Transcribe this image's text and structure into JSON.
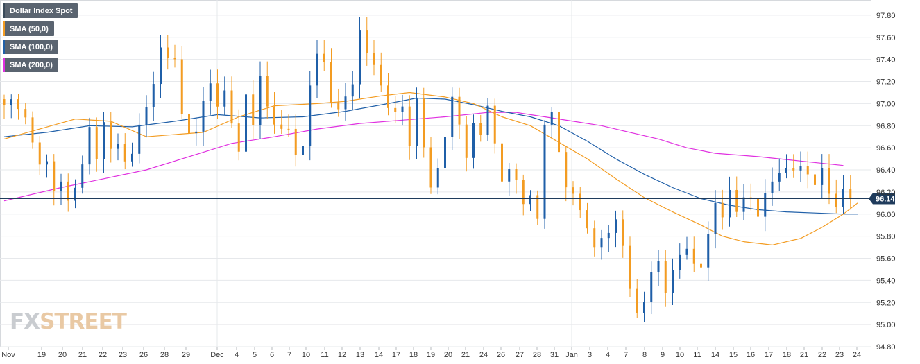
{
  "legend": [
    {
      "label": "Dollar Index Spot",
      "color": "#3a4a5a"
    },
    {
      "label": "SMA (50,0)",
      "color": "#f39c22"
    },
    {
      "label": "SMA (100,0)",
      "color": "#1f5fa8"
    },
    {
      "label": "SMA (200,0)",
      "color": "#e030e0"
    }
  ],
  "logo": {
    "part1": "FX",
    "part2": "STREET"
  },
  "chart_data": {
    "type": "candlestick",
    "ylim": [
      94.8,
      97.9
    ],
    "y_ticks": [
      "97.80",
      "97.60",
      "97.40",
      "97.20",
      "97.00",
      "96.80",
      "96.60",
      "96.40",
      "96.20",
      "96.00",
      "95.80",
      "95.60",
      "95.40",
      "95.20",
      "95.00",
      "94.80"
    ],
    "x_ticks": [
      "Nov",
      "19",
      "20",
      "21",
      "22",
      "23",
      "26",
      "28",
      "29",
      "Dec",
      "4",
      "5",
      "6",
      "7",
      "10",
      "11",
      "12",
      "13",
      "14",
      "17",
      "18",
      "19",
      "20",
      "21",
      "24",
      "26",
      "27",
      "28",
      "31",
      "Jan",
      "3",
      "4",
      "7",
      "8",
      "9",
      "10",
      "11",
      "14",
      "15",
      "16",
      "17",
      "18",
      "21",
      "22",
      "23",
      "24"
    ],
    "last_price": "96.14",
    "last_value": 96.14,
    "colors": {
      "up": "#1f5fa8",
      "down": "#f39c22",
      "sma50": "#f39c22",
      "sma100": "#1f5fa8",
      "sma200": "#e030e0"
    },
    "close_path": [
      [
        0,
        96.95
      ],
      [
        2,
        97.05
      ],
      [
        4,
        96.6
      ],
      [
        6,
        96.45
      ],
      [
        7,
        96.2
      ],
      [
        8,
        96.3
      ],
      [
        9,
        96.1
      ],
      [
        10,
        96.3
      ],
      [
        11,
        96.4
      ],
      [
        12,
        96.75
      ],
      [
        13,
        96.6
      ],
      [
        14,
        96.78
      ],
      [
        15,
        96.55
      ],
      [
        16,
        96.7
      ],
      [
        17,
        96.45
      ],
      [
        18,
        96.55
      ],
      [
        19,
        96.8
      ],
      [
        20,
        96.95
      ],
      [
        21,
        97.25
      ],
      [
        22,
        97.45
      ],
      [
        23,
        97.38
      ],
      [
        24,
        97.5
      ],
      [
        25,
        96.85
      ],
      [
        26,
        96.7
      ],
      [
        27,
        96.8
      ],
      [
        28,
        97.0
      ],
      [
        29,
        97.2
      ],
      [
        30,
        96.95
      ],
      [
        31,
        97.1
      ],
      [
        32,
        96.9
      ],
      [
        33,
        96.5
      ],
      [
        34,
        97.05
      ],
      [
        35,
        96.9
      ],
      [
        36,
        97.2
      ],
      [
        37,
        96.95
      ],
      [
        38,
        96.85
      ],
      [
        39,
        96.75
      ],
      [
        40,
        96.8
      ],
      [
        41,
        96.5
      ],
      [
        42,
        96.6
      ],
      [
        43,
        97.25
      ],
      [
        44,
        97.38
      ],
      [
        45,
        97.35
      ],
      [
        46,
        97.1
      ],
      [
        47,
        96.9
      ],
      [
        48,
        97.05
      ],
      [
        49,
        97.2
      ],
      [
        50,
        97.65
      ],
      [
        51,
        97.5
      ],
      [
        52,
        97.3
      ],
      [
        53,
        97.15
      ],
      [
        54,
        97.05
      ],
      [
        55,
        96.85
      ],
      [
        56,
        96.95
      ],
      [
        57,
        96.7
      ],
      [
        58,
        97.0
      ],
      [
        59,
        96.6
      ],
      [
        60,
        96.25
      ],
      [
        61,
        96.4
      ],
      [
        62,
        96.75
      ],
      [
        63,
        97.0
      ],
      [
        64,
        96.8
      ],
      [
        65,
        96.6
      ],
      [
        66,
        96.75
      ],
      [
        67,
        96.7
      ],
      [
        68,
        97.05
      ],
      [
        69,
        96.6
      ],
      [
        70,
        96.3
      ],
      [
        71,
        96.4
      ],
      [
        72,
        96.3
      ],
      [
        73,
        96.15
      ],
      [
        74,
        96.1
      ],
      [
        75,
        95.95
      ],
      [
        76,
        96.9
      ],
      [
        77,
        96.85
      ],
      [
        78,
        96.55
      ],
      [
        79,
        96.3
      ],
      [
        80,
        96.15
      ],
      [
        81,
        96.05
      ],
      [
        82,
        95.85
      ],
      [
        83,
        95.7
      ],
      [
        84,
        95.85
      ],
      [
        85,
        95.75
      ],
      [
        86,
        95.95
      ],
      [
        87,
        95.8
      ],
      [
        88,
        95.25
      ],
      [
        89,
        95.1
      ],
      [
        90,
        95.25
      ],
      [
        91,
        95.45
      ],
      [
        92,
        95.6
      ],
      [
        93,
        95.25
      ],
      [
        94,
        95.5
      ],
      [
        95,
        95.7
      ],
      [
        96,
        95.6
      ],
      [
        97,
        95.55
      ],
      [
        98,
        95.6
      ],
      [
        99,
        95.75
      ],
      [
        100,
        96.1
      ],
      [
        101,
        96.0
      ],
      [
        102,
        96.2
      ],
      [
        103,
        96.05
      ],
      [
        104,
        96.1
      ],
      [
        105,
        96.15
      ],
      [
        106,
        96.05
      ],
      [
        107,
        96.1
      ],
      [
        108,
        96.3
      ],
      [
        109,
        96.45
      ],
      [
        110,
        96.35
      ],
      [
        111,
        96.4
      ],
      [
        112,
        96.45
      ],
      [
        113,
        96.35
      ],
      [
        114,
        96.3
      ],
      [
        115,
        96.35
      ],
      [
        116,
        96.2
      ],
      [
        117,
        96.14
      ]
    ],
    "sma50": [
      [
        0,
        96.68
      ],
      [
        10,
        96.86
      ],
      [
        15,
        96.84
      ],
      [
        20,
        96.7
      ],
      [
        28,
        96.74
      ],
      [
        33,
        96.88
      ],
      [
        38,
        96.98
      ],
      [
        44,
        97.0
      ],
      [
        48,
        97.02
      ],
      [
        53,
        97.07
      ],
      [
        57,
        97.1
      ],
      [
        62,
        97.06
      ],
      [
        66,
        97.0
      ],
      [
        70,
        96.88
      ],
      [
        74,
        96.8
      ],
      [
        78,
        96.65
      ],
      [
        82,
        96.5
      ],
      [
        86,
        96.32
      ],
      [
        90,
        96.15
      ],
      [
        94,
        96.02
      ],
      [
        98,
        95.9
      ],
      [
        101,
        95.8
      ],
      [
        104,
        95.75
      ],
      [
        108,
        95.72
      ],
      [
        112,
        95.78
      ],
      [
        115,
        95.88
      ],
      [
        118,
        96.0
      ],
      [
        120,
        96.1
      ]
    ],
    "sma100": [
      [
        0,
        96.7
      ],
      [
        6,
        96.74
      ],
      [
        12,
        96.8
      ],
      [
        18,
        96.79
      ],
      [
        24,
        96.84
      ],
      [
        30,
        96.9
      ],
      [
        36,
        96.87
      ],
      [
        42,
        96.88
      ],
      [
        48,
        96.93
      ],
      [
        54,
        97.0
      ],
      [
        58,
        97.05
      ],
      [
        62,
        97.04
      ],
      [
        66,
        96.99
      ],
      [
        70,
        96.93
      ],
      [
        74,
        96.88
      ],
      [
        78,
        96.8
      ],
      [
        82,
        96.66
      ],
      [
        86,
        96.5
      ],
      [
        90,
        96.36
      ],
      [
        94,
        96.24
      ],
      [
        98,
        96.14
      ],
      [
        102,
        96.08
      ],
      [
        106,
        96.04
      ],
      [
        110,
        96.02
      ],
      [
        114,
        96.01
      ],
      [
        118,
        96.0
      ],
      [
        120,
        96.0
      ]
    ],
    "sma200": [
      [
        0,
        96.12
      ],
      [
        8,
        96.24
      ],
      [
        14,
        96.32
      ],
      [
        20,
        96.4
      ],
      [
        26,
        96.52
      ],
      [
        32,
        96.64
      ],
      [
        38,
        96.7
      ],
      [
        44,
        96.77
      ],
      [
        50,
        96.82
      ],
      [
        56,
        96.85
      ],
      [
        62,
        96.88
      ],
      [
        68,
        96.92
      ],
      [
        72,
        96.92
      ],
      [
        76,
        96.88
      ],
      [
        80,
        96.84
      ],
      [
        84,
        96.8
      ],
      [
        88,
        96.74
      ],
      [
        92,
        96.68
      ],
      [
        96,
        96.6
      ],
      [
        100,
        96.55
      ],
      [
        106,
        96.52
      ],
      [
        112,
        96.48
      ],
      [
        118,
        96.44
      ]
    ]
  }
}
